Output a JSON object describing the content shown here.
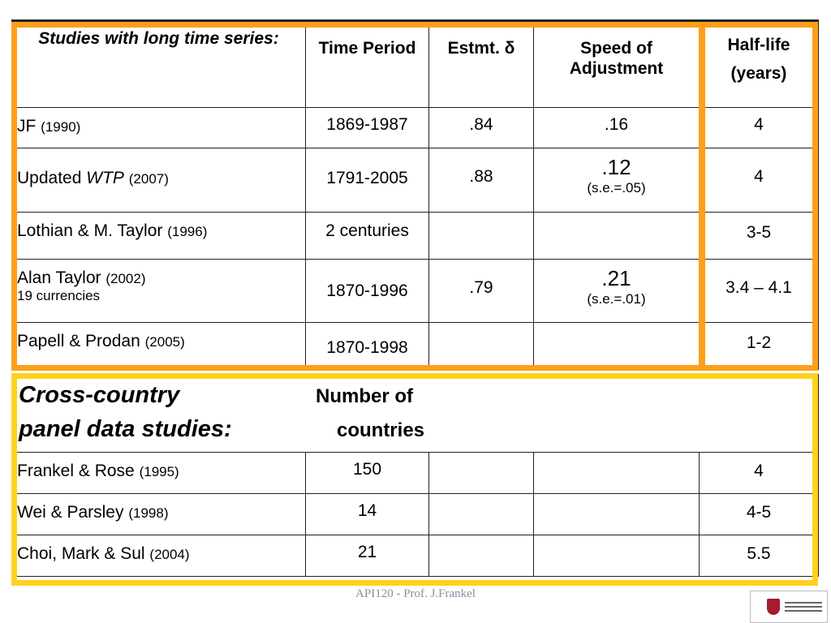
{
  "long_series": {
    "headers": {
      "studies": "Studies with long time series:",
      "time_period": "Time Period",
      "estmt": "Estmt. δ",
      "speed": "Speed of Adjustment",
      "half_life": "Half-life (years)"
    },
    "rows": [
      {
        "study": "JF",
        "year": "(1990)",
        "sub": "",
        "period": "1869-1987",
        "estmt": ".84",
        "speed": ".16",
        "se": "",
        "half_life": "4"
      },
      {
        "study": "Updated",
        "study_italic": "WTP",
        "year": "(2007)",
        "sub": "",
        "period": "1791-2005",
        "estmt": ".88",
        "speed": ".12",
        "se": "(s.e.=.05)",
        "half_life": "4"
      },
      {
        "study": "Lothian & M. Taylor",
        "year": "(1996)",
        "sub": "",
        "period": "2 centuries",
        "estmt": "",
        "speed": "",
        "se": "",
        "half_life": "3-5"
      },
      {
        "study": "Alan Taylor",
        "year": "(2002)",
        "sub": "19 currencies",
        "period": "1870-1996",
        "estmt": ".79",
        "speed": ".21",
        "se": "(s.e.=.01)",
        "half_life": "3.4 – 4.1"
      },
      {
        "study": "Papell & Prodan",
        "year": "(2005)",
        "sub": "",
        "period": "1870-1998",
        "estmt": "",
        "speed": "",
        "se": "",
        "half_life": "1-2"
      }
    ]
  },
  "cross_country": {
    "title_line1": "Cross-country",
    "title_line2": "panel data studies:",
    "num_hdr_line1": "Number of",
    "num_hdr_line2": "countries",
    "rows": [
      {
        "study": "Frankel & Rose",
        "year": "(1995)",
        "countries": "150",
        "half_life": "4"
      },
      {
        "study": "Wei & Parsley",
        "year": "(1998)",
        "countries": "14",
        "half_life": "4-5"
      },
      {
        "study": "Choi, Mark & Sul",
        "year": "(2004)",
        "countries": "21",
        "half_life": "5.5"
      }
    ]
  },
  "footer": "API120 - Prof. J.Frankel",
  "logo_icon": "harvard-kennedy-school-logo",
  "colors": {
    "orange_highlight": "#ff9e1b",
    "yellow_highlight": "#ffd21f"
  }
}
